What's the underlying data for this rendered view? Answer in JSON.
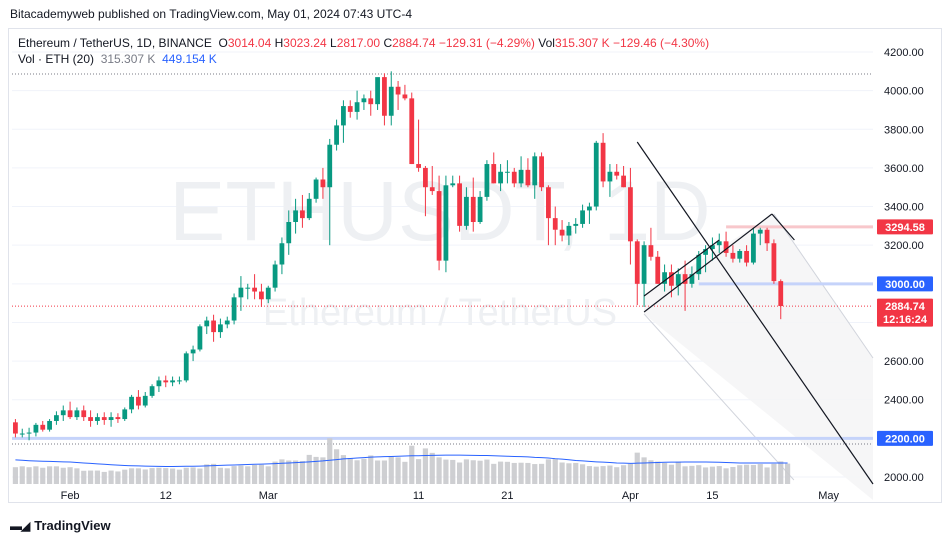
{
  "publisher": "Bitacademyweb published on TradingView.com, May 01, 2024 07:43 UTC-4",
  "legend": {
    "symbol": "Ethereum / TetherUS, 1D, BINANCE",
    "open_label": "O",
    "open": "3014.04",
    "high_label": "H",
    "high": "3023.24",
    "low_label": "L",
    "low": "2817.00",
    "close_label": "C",
    "close": "2884.74",
    "change": "−129.31 (−4.29%)",
    "vol_label": "Vol",
    "vol": "315.307 K",
    "vol_change": "−129.46 (−4.30%)",
    "vol_ma_label": "Vol · ETH (20)",
    "vol_value": "315.307 K",
    "vol_ma_value": "449.154 K"
  },
  "watermark": {
    "ticker": "ETHUSDT, 1D",
    "name": "Ethereum / TetherUS"
  },
  "footer": {
    "brand": "TradingView",
    "logo": "tradingview-logo-icon"
  },
  "colors": {
    "up": "#089981",
    "down": "#f23645",
    "volume": "#c9cacd",
    "vol_ma": "#2962ff"
  },
  "price_tags": [
    {
      "label": "3294.58",
      "value": 3294.58,
      "color": "#f23645"
    },
    {
      "label": "3000.00",
      "value": 3000.0,
      "color": "#2962ff"
    },
    {
      "label": "2884.74",
      "value": 2884.74,
      "color": "#f23645",
      "sub": "12:16:24"
    },
    {
      "label": "2200.00",
      "value": 2200.0,
      "color": "#2962ff"
    }
  ],
  "chart_data": {
    "type": "candlestick",
    "x_ticks": [
      "Feb",
      "12",
      "Mar",
      "11",
      "21",
      "Apr",
      "15",
      "May"
    ],
    "y_ticks": [
      "4200.00",
      "4000.00",
      "3800.00",
      "3600.00",
      "3400.00",
      "3200.00",
      "3000.00",
      "2600.00",
      "2400.00",
      "2200.00",
      "2000.00"
    ],
    "ylim": [
      1975,
      4240
    ],
    "horizontal_lines": [
      3294.58,
      3000.0,
      2200.0
    ],
    "current_price": 2884.74,
    "candles": [
      [
        2283,
        2300,
        2205,
        2225
      ],
      [
        2225,
        2250,
        2205,
        2225
      ],
      [
        2225,
        2255,
        2190,
        2230
      ],
      [
        2230,
        2280,
        2210,
        2270
      ],
      [
        2270,
        2290,
        2235,
        2245
      ],
      [
        2245,
        2300,
        2235,
        2290
      ],
      [
        2290,
        2340,
        2270,
        2320
      ],
      [
        2320,
        2370,
        2290,
        2345
      ],
      [
        2345,
        2390,
        2300,
        2310
      ],
      [
        2310,
        2360,
        2295,
        2345
      ],
      [
        2345,
        2370,
        2290,
        2310
      ],
      [
        2310,
        2345,
        2260,
        2290
      ],
      [
        2290,
        2330,
        2270,
        2310
      ],
      [
        2310,
        2335,
        2270,
        2295
      ],
      [
        2295,
        2335,
        2260,
        2310
      ],
      [
        2310,
        2330,
        2280,
        2300
      ],
      [
        2300,
        2360,
        2290,
        2350
      ],
      [
        2350,
        2425,
        2330,
        2415
      ],
      [
        2415,
        2450,
        2350,
        2370
      ],
      [
        2370,
        2440,
        2360,
        2420
      ],
      [
        2420,
        2480,
        2410,
        2470
      ],
      [
        2470,
        2520,
        2440,
        2500
      ],
      [
        2500,
        2525,
        2465,
        2490
      ],
      [
        2490,
        2520,
        2470,
        2500
      ],
      [
        2500,
        2520,
        2480,
        2500
      ],
      [
        2500,
        2650,
        2490,
        2640
      ],
      [
        2640,
        2680,
        2600,
        2660
      ],
      [
        2660,
        2790,
        2650,
        2780
      ],
      [
        2780,
        2830,
        2740,
        2810
      ],
      [
        2810,
        2840,
        2700,
        2750
      ],
      [
        2750,
        2820,
        2720,
        2790
      ],
      [
        2790,
        2830,
        2770,
        2810
      ],
      [
        2810,
        2950,
        2790,
        2930
      ],
      [
        2930,
        3040,
        2860,
        2980
      ],
      [
        2980,
        3000,
        2920,
        2980
      ],
      [
        2980,
        3050,
        2920,
        2960
      ],
      [
        2960,
        3000,
        2880,
        2920
      ],
      [
        2920,
        2990,
        2900,
        2980
      ],
      [
        2980,
        3120,
        2960,
        3100
      ],
      [
        3100,
        3240,
        3050,
        3210
      ],
      [
        3210,
        3380,
        3150,
        3320
      ],
      [
        3320,
        3440,
        3260,
        3380
      ],
      [
        3380,
        3460,
        3290,
        3340
      ],
      [
        3340,
        3470,
        3330,
        3440
      ],
      [
        3440,
        3550,
        3420,
        3540
      ],
      [
        3540,
        3600,
        3440,
        3500
      ],
      [
        3500,
        3750,
        3200,
        3720
      ],
      [
        3720,
        3850,
        3690,
        3820
      ],
      [
        3820,
        3950,
        3730,
        3920
      ],
      [
        3920,
        3950,
        3860,
        3890
      ],
      [
        3890,
        4000,
        3850,
        3940
      ],
      [
        3940,
        3980,
        3900,
        3960
      ],
      [
        3960,
        4000,
        3870,
        3930
      ],
      [
        3930,
        4050,
        3900,
        4070
      ],
      [
        4070,
        4090,
        3820,
        3870
      ],
      [
        3870,
        4100,
        3820,
        4020
      ],
      [
        4020,
        4050,
        3900,
        3980
      ],
      [
        3980,
        4030,
        3950,
        3960
      ],
      [
        3960,
        3990,
        3620,
        3620
      ],
      [
        3620,
        3850,
        3580,
        3600
      ],
      [
        3600,
        3610,
        3350,
        3500
      ],
      [
        3500,
        3610,
        3460,
        3480
      ],
      [
        3480,
        3560,
        3070,
        3120
      ],
      [
        3120,
        3560,
        3060,
        3510
      ],
      [
        3510,
        3560,
        3500,
        3520
      ],
      [
        3520,
        3560,
        3270,
        3300
      ],
      [
        3300,
        3500,
        3280,
        3450
      ],
      [
        3450,
        3550,
        3270,
        3320
      ],
      [
        3320,
        3480,
        3310,
        3450
      ],
      [
        3450,
        3640,
        3430,
        3620
      ],
      [
        3620,
        3680,
        3520,
        3520
      ],
      [
        3520,
        3620,
        3480,
        3580
      ],
      [
        3580,
        3640,
        3520,
        3580
      ],
      [
        3580,
        3600,
        3500,
        3520
      ],
      [
        3520,
        3660,
        3500,
        3590
      ],
      [
        3590,
        3650,
        3500,
        3510
      ],
      [
        3510,
        3680,
        3440,
        3660
      ],
      [
        3660,
        3680,
        3480,
        3500
      ],
      [
        3500,
        3510,
        3200,
        3340
      ],
      [
        3340,
        3400,
        3200,
        3280
      ],
      [
        3280,
        3330,
        3220,
        3250
      ],
      [
        3250,
        3320,
        3200,
        3300
      ],
      [
        3300,
        3340,
        3260,
        3310
      ],
      [
        3310,
        3410,
        3290,
        3380
      ],
      [
        3380,
        3420,
        3310,
        3400
      ],
      [
        3400,
        3740,
        3380,
        3730
      ],
      [
        3730,
        3780,
        3500,
        3530
      ],
      [
        3530,
        3620,
        3450,
        3580
      ],
      [
        3580,
        3620,
        3540,
        3560
      ],
      [
        3560,
        3610,
        3500,
        3500
      ],
      [
        3500,
        3600,
        3100,
        3220
      ],
      [
        3220,
        3230,
        2890,
        3000
      ],
      [
        3000,
        3220,
        2880,
        3200
      ],
      [
        3200,
        3290,
        3120,
        3140
      ],
      [
        3140,
        3170,
        3000,
        3000
      ],
      [
        3000,
        3100,
        2960,
        3060
      ],
      [
        3060,
        3100,
        2930,
        2990
      ],
      [
        2990,
        3080,
        2940,
        3050
      ],
      [
        3050,
        3120,
        2860,
        3000
      ],
      [
        3000,
        3090,
        2980,
        3050
      ],
      [
        3050,
        3170,
        3020,
        3150
      ],
      [
        3150,
        3200,
        3060,
        3180
      ],
      [
        3180,
        3240,
        3120,
        3200
      ],
      [
        3200,
        3260,
        3160,
        3220
      ],
      [
        3220,
        3270,
        3140,
        3160
      ],
      [
        3160,
        3200,
        3110,
        3130
      ],
      [
        3130,
        3180,
        3110,
        3170
      ],
      [
        3170,
        3200,
        3090,
        3110
      ],
      [
        3110,
        3290,
        3100,
        3260
      ],
      [
        3260,
        3290,
        3200,
        3280
      ],
      [
        3280,
        3290,
        3170,
        3210
      ],
      [
        3210,
        3230,
        3000,
        3014
      ],
      [
        3014,
        3023,
        2817,
        2885
      ]
    ],
    "volume": [
      150,
      158,
      150,
      158,
      145,
      158,
      158,
      145,
      150,
      140,
      118,
      120,
      120,
      108,
      120,
      112,
      128,
      140,
      140,
      130,
      142,
      145,
      142,
      138,
      128,
      145,
      148,
      138,
      175,
      180,
      145,
      140,
      160,
      165,
      158,
      170,
      172,
      158,
      200,
      220,
      210,
      210,
      205,
      260,
      242,
      238,
      408,
      310,
      258,
      232,
      212,
      225,
      255,
      210,
      210,
      248,
      238,
      198,
      342,
      222,
      318,
      278,
      238,
      218,
      215,
      192,
      220,
      212,
      208,
      218,
      180,
      200,
      198,
      188,
      190,
      188,
      178,
      180,
      220,
      228,
      192,
      185,
      188,
      176,
      160,
      155,
      160,
      165,
      150,
      168,
      180,
      280,
      238,
      212,
      200,
      188,
      172,
      200,
      158,
      162,
      168,
      148,
      155,
      160,
      140,
      152,
      168,
      172,
      170,
      178,
      148,
      180,
      202,
      182
    ],
    "volume_ma": [
      215,
      212,
      208,
      205,
      203,
      202,
      200,
      198,
      196,
      192,
      188,
      184,
      180,
      176,
      172,
      168,
      165,
      163,
      162,
      160,
      158,
      157,
      156,
      156,
      157,
      158,
      159,
      160,
      162,
      164,
      166,
      168,
      170,
      172,
      174,
      176,
      178,
      180,
      182,
      185,
      188,
      191,
      194,
      198,
      202,
      206,
      212,
      218,
      224,
      228,
      232,
      236,
      240,
      242,
      244,
      246,
      248,
      250,
      252,
      252,
      255,
      256,
      257,
      258,
      258,
      258,
      257,
      256,
      255,
      254,
      252,
      250,
      248,
      246,
      244,
      242,
      238,
      236,
      232,
      226,
      222,
      216,
      210,
      206,
      202,
      198,
      195,
      192,
      188,
      186,
      184,
      186,
      188,
      190,
      192,
      194,
      195,
      195,
      196,
      196,
      196,
      196,
      195,
      194,
      192,
      190,
      188,
      188,
      188,
      188,
      188,
      188,
      188,
      188
    ],
    "drawings": [
      {
        "type": "line",
        "from": [
          94,
          3740
        ],
        "to": [
          120,
          1980
        ]
      },
      {
        "type": "line",
        "from": [
          94,
          3740
        ],
        "to": [
          120,
          1980
        ]
      }
    ]
  }
}
